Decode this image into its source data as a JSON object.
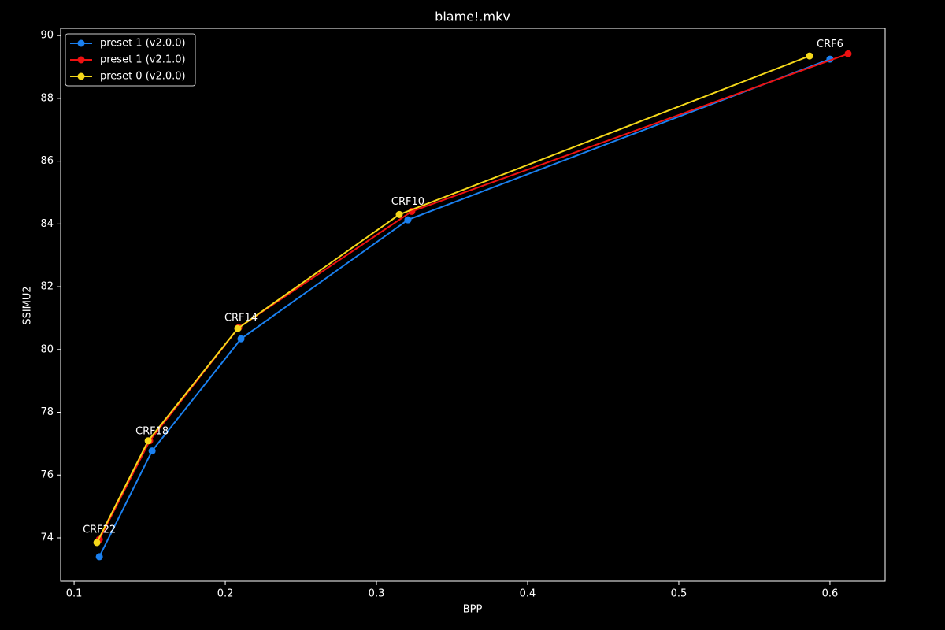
{
  "chart_data": {
    "type": "line",
    "title": "blame!.mkv",
    "x_label": "BPP",
    "y_label": "SSIMU2",
    "series": [
      {
        "name": "preset 1 (v2.0.0)",
        "color": "#1a80f0",
        "x": [
          0.1167,
          0.1516,
          0.2104,
          0.3208,
          0.6
        ],
        "values": [
          73.4,
          76.77,
          80.34,
          84.13,
          89.25
        ]
      },
      {
        "name": "preset 1 (v2.1.0)",
        "color": "#ee1111",
        "x": [
          0.1167,
          0.15,
          0.2089,
          0.3234,
          0.612
        ],
        "values": [
          73.95,
          77.09,
          80.7,
          84.4,
          89.42
        ]
      },
      {
        "name": "preset 0 (v2.0.0)",
        "color": "#f5d81a",
        "x": [
          0.1151,
          0.149,
          0.2083,
          0.3151,
          0.5865
        ],
        "values": [
          73.85,
          77.09,
          80.67,
          84.3,
          89.35
        ]
      }
    ],
    "point_labels": [
      "CRF22",
      "CRF18",
      "CRF14",
      "CRF10",
      "CRF6"
    ],
    "xlim": [
      0.0911,
      0.6365
    ],
    "ylim": [
      72.62,
      90.23
    ],
    "xticks": [
      0.1,
      0.2,
      0.3,
      0.4,
      0.5,
      0.6
    ],
    "yticks": [
      74,
      76,
      78,
      80,
      82,
      84,
      86,
      88,
      90
    ],
    "legend": "upper left",
    "markers": true
  }
}
